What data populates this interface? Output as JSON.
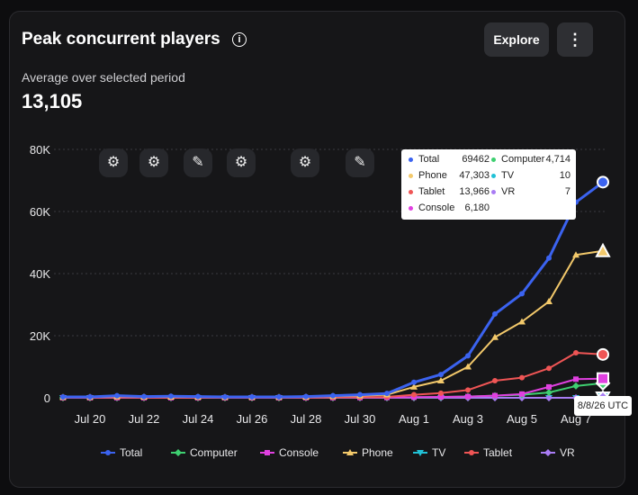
{
  "header": {
    "title": "Peak concurrent players",
    "info_icon": "info-icon",
    "explore_label": "Explore",
    "more_icon": "more-vertical-icon",
    "more_label": "⋮"
  },
  "summary": {
    "label": "Average over selected period",
    "value": "13,105"
  },
  "overlay_buttons": [
    {
      "icon": "gear-icon",
      "glyph": "⚙"
    },
    {
      "icon": "gear-icon",
      "glyph": "⚙"
    },
    {
      "icon": "pencil-icon",
      "glyph": "✎"
    },
    {
      "icon": "gear-icon",
      "glyph": "⚙"
    },
    {
      "icon": "gear-icon",
      "glyph": "⚙"
    },
    {
      "icon": "pencil-icon",
      "glyph": "✎"
    }
  ],
  "tooltip": {
    "rows": [
      {
        "label": "Total",
        "value": "69462",
        "color": "#3b63f0"
      },
      {
        "label": "Computer",
        "value": "4,714",
        "color": "#3ecf70"
      },
      {
        "label": "Phone",
        "value": "47,303",
        "color": "#f3c96b"
      },
      {
        "label": "TV",
        "value": "10",
        "color": "#21c1d6"
      },
      {
        "label": "Tablet",
        "value": "13,966",
        "color": "#ef5555"
      },
      {
        "label": "VR",
        "value": "7",
        "color": "#a97cf4"
      },
      {
        "label": "Console",
        "value": "6,180",
        "color": "#e040e0"
      }
    ]
  },
  "date_badge": "8/8/26 UTC",
  "chart_data": {
    "type": "line",
    "x": [
      "Jul 19",
      "Jul 20",
      "Jul 21",
      "Jul 22",
      "Jul 23",
      "Jul 24",
      "Jul 25",
      "Jul 26",
      "Jul 27",
      "Jul 28",
      "Jul 29",
      "Jul 30",
      "Jul 31",
      "Aug 1",
      "Aug 2",
      "Aug 3",
      "Aug 4",
      "Aug 5",
      "Aug 6",
      "Aug 7",
      "Aug 8"
    ],
    "x_tick_labels": [
      "Jul 20",
      "Jul 22",
      "Jul 24",
      "Jul 26",
      "Jul 28",
      "Jul 30",
      "Aug 1",
      "Aug 3",
      "Aug 5",
      "Aug 7"
    ],
    "y_tick_labels": [
      "0",
      "20K",
      "40K",
      "60K",
      "80K"
    ],
    "ylim": [
      0,
      80000
    ],
    "grid": true,
    "legend_position": "bottom",
    "series": [
      {
        "name": "Total",
        "color": "#3b63f0",
        "marker": "circle",
        "values": [
          300,
          300,
          700,
          400,
          500,
          400,
          300,
          300,
          300,
          400,
          700,
          1000,
          1400,
          5000,
          7500,
          13500,
          27000,
          33500,
          45000,
          63000,
          69462
        ]
      },
      {
        "name": "Computer",
        "color": "#3ecf70",
        "marker": "diamond",
        "values": [
          20,
          20,
          30,
          20,
          20,
          20,
          20,
          20,
          20,
          30,
          40,
          60,
          80,
          150,
          250,
          400,
          700,
          1000,
          1700,
          3800,
          4714
        ]
      },
      {
        "name": "Console",
        "color": "#e040e0",
        "marker": "square",
        "values": [
          30,
          30,
          40,
          30,
          30,
          30,
          30,
          30,
          30,
          40,
          50,
          80,
          100,
          200,
          300,
          400,
          700,
          1200,
          3500,
          6000,
          6180
        ]
      },
      {
        "name": "Phone",
        "color": "#f3c96b",
        "marker": "triangle",
        "values": [
          200,
          200,
          450,
          280,
          300,
          260,
          200,
          200,
          200,
          300,
          500,
          700,
          1000,
          3500,
          5500,
          10000,
          19500,
          24500,
          31000,
          46000,
          47303
        ]
      },
      {
        "name": "TV",
        "color": "#21c1d6",
        "marker": "triangle-down",
        "values": [
          0,
          0,
          0,
          0,
          0,
          0,
          0,
          0,
          0,
          0,
          0,
          0,
          0,
          0,
          2,
          3,
          4,
          5,
          6,
          8,
          10
        ]
      },
      {
        "name": "Tablet",
        "color": "#ef5555",
        "marker": "circle",
        "values": [
          60,
          60,
          150,
          80,
          100,
          80,
          60,
          60,
          60,
          80,
          150,
          200,
          300,
          1000,
          1500,
          2500,
          5500,
          6500,
          9500,
          14500,
          13966
        ]
      },
      {
        "name": "VR",
        "color": "#a97cf4",
        "marker": "diamond",
        "values": [
          0,
          0,
          0,
          0,
          0,
          0,
          0,
          0,
          0,
          0,
          0,
          0,
          0,
          0,
          1,
          2,
          3,
          4,
          5,
          6,
          7
        ]
      }
    ]
  }
}
